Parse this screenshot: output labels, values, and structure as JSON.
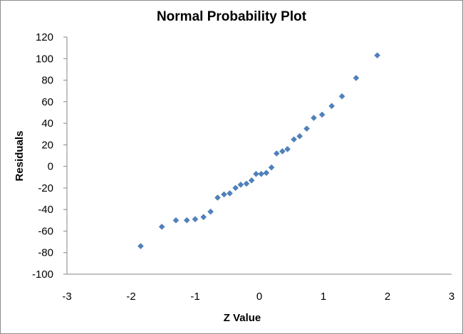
{
  "chart_data": {
    "type": "scatter",
    "title": "Normal Probability Plot",
    "xlabel": "Z Value",
    "ylabel": "Residuals",
    "xlim": [
      -3,
      3
    ],
    "ylim": [
      -100,
      120
    ],
    "x_ticks": [
      "-3",
      "-2",
      "-1",
      "0",
      "1",
      "2",
      "3"
    ],
    "y_ticks": [
      "-100",
      "-80",
      "-60",
      "-40",
      "-20",
      "0",
      "20",
      "40",
      "60",
      "80",
      "100",
      "120"
    ],
    "grid": false,
    "legend": "none",
    "marker_color": "#4f81bd",
    "series": [
      {
        "points": [
          {
            "x": -1.85,
            "y": -74
          },
          {
            "x": -1.52,
            "y": -56
          },
          {
            "x": -1.3,
            "y": -50
          },
          {
            "x": -1.13,
            "y": -50
          },
          {
            "x": -1.0,
            "y": -49
          },
          {
            "x": -0.87,
            "y": -47
          },
          {
            "x": -0.76,
            "y": -42
          },
          {
            "x": -0.65,
            "y": -29
          },
          {
            "x": -0.55,
            "y": -26
          },
          {
            "x": -0.46,
            "y": -25
          },
          {
            "x": -0.37,
            "y": -20
          },
          {
            "x": -0.29,
            "y": -17
          },
          {
            "x": -0.2,
            "y": -16
          },
          {
            "x": -0.12,
            "y": -13
          },
          {
            "x": -0.05,
            "y": -7
          },
          {
            "x": 0.03,
            "y": -7
          },
          {
            "x": 0.11,
            "y": -6
          },
          {
            "x": 0.19,
            "y": -1
          },
          {
            "x": 0.27,
            "y": 12
          },
          {
            "x": 0.36,
            "y": 14
          },
          {
            "x": 0.44,
            "y": 16
          },
          {
            "x": 0.54,
            "y": 25
          },
          {
            "x": 0.63,
            "y": 28
          },
          {
            "x": 0.74,
            "y": 35
          },
          {
            "x": 0.85,
            "y": 45
          },
          {
            "x": 0.98,
            "y": 48
          },
          {
            "x": 1.13,
            "y": 56
          },
          {
            "x": 1.29,
            "y": 65
          },
          {
            "x": 1.51,
            "y": 82
          },
          {
            "x": 1.84,
            "y": 103
          }
        ]
      }
    ]
  }
}
